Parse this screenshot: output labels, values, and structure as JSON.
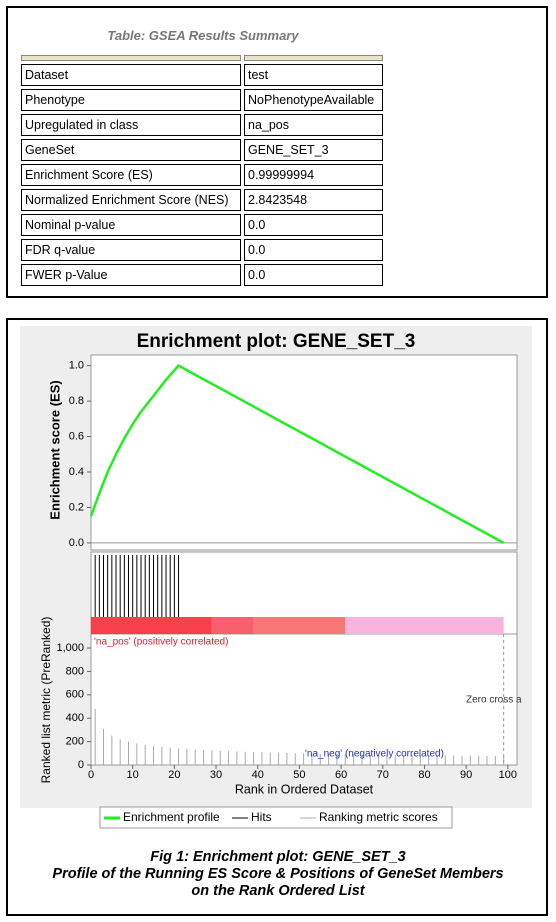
{
  "table": {
    "title": "Table: GSEA Results Summary",
    "rows": [
      [
        "Dataset",
        "test"
      ],
      [
        "Phenotype",
        "NoPhenotypeAvailable"
      ],
      [
        "Upregulated in class",
        "na_pos"
      ],
      [
        "GeneSet",
        "GENE_SET_3"
      ],
      [
        "Enrichment Score (ES)",
        "0.99999994"
      ],
      [
        "Normalized Enrichment Score (NES)",
        "2.8423548"
      ],
      [
        "Nominal p-value",
        "0.0"
      ],
      [
        "FDR q-value",
        "0.0"
      ],
      [
        "FWER p-Value",
        "0.0"
      ]
    ]
  },
  "chart_data": {
    "type": "enrichment",
    "title": "Enrichment plot: GENE_SET_3",
    "ylabel": "Enrichment score (ES)",
    "y2label": "Ranked list metric (PreRanked)",
    "xlabel": "Rank in Ordered Dataset",
    "xlim": [
      0,
      102.2
    ],
    "xticks": [
      0,
      10,
      20,
      30,
      40,
      50,
      60,
      70,
      80,
      90,
      100
    ],
    "ylim": [
      -0.04,
      1.06
    ],
    "yticks": [
      {
        "value": 0,
        "label": "0.0"
      },
      {
        "value": 0.2,
        "label": "0.2"
      },
      {
        "value": 0.4,
        "label": "0.4"
      },
      {
        "value": 0.6,
        "label": "0.6"
      },
      {
        "value": 0.8,
        "label": "0.8"
      },
      {
        "value": 1,
        "label": "1.0"
      }
    ],
    "y2lim": [
      0,
      1120
    ],
    "y2ticks": [
      0,
      200,
      400,
      600,
      800,
      {
        "value": 1000,
        "label": "1,000"
      }
    ],
    "series": [
      {
        "name": "Enrichment profile",
        "color": "#22ee22",
        "x": [
          0,
          2,
          4,
          6,
          8,
          10,
          12,
          14,
          16,
          18,
          21,
          99
        ],
        "values": [
          0.15,
          0.28,
          0.4,
          0.5,
          0.59,
          0.67,
          0.74,
          0.8,
          0.86,
          0.92,
          1.0,
          0.0
        ]
      },
      {
        "name": "Hits",
        "color": "#000000",
        "x": [
          1,
          2,
          3,
          4,
          5,
          6,
          7,
          8,
          9,
          10,
          11,
          12,
          13,
          14,
          15,
          16,
          17,
          18,
          19,
          20,
          21
        ]
      },
      {
        "name": "Ranking metric scores",
        "color": "#aaaaaa",
        "axis": "y2",
        "x": [
          1,
          3,
          5,
          7,
          9,
          11,
          13,
          15,
          17,
          19,
          21,
          23,
          25,
          27,
          29,
          31,
          33,
          35,
          37,
          39,
          41,
          43,
          45,
          47,
          49,
          51,
          53,
          55,
          57,
          59,
          61,
          63,
          65,
          67,
          69,
          71,
          73,
          75,
          77,
          79,
          81,
          83,
          85,
          87,
          89,
          91,
          93,
          95,
          97,
          99
        ],
        "values": [
          480,
          309,
          252,
          220,
          199,
          184,
          172,
          162,
          155,
          148,
          142,
          137,
          132,
          128,
          125,
          122,
          119,
          116,
          113,
          111,
          109,
          107,
          105,
          103,
          101,
          100,
          98,
          97,
          95,
          94,
          93,
          92,
          90,
          89,
          88,
          87,
          86,
          85,
          84,
          84,
          83,
          82,
          81,
          80,
          80,
          79,
          78,
          78,
          77,
          76
        ]
      }
    ],
    "rank_bands": [
      {
        "from": 0,
        "to": 29,
        "color": "#f8404c"
      },
      {
        "from": 29,
        "to": 39,
        "color": "#f86070"
      },
      {
        "from": 39,
        "to": 61,
        "color": "#f87878"
      },
      {
        "from": 61,
        "to": 99,
        "color": "#f8b4dc"
      }
    ],
    "zero_cross": 99,
    "annotations": [
      {
        "text": "'na_pos' (positively correlated)",
        "color": "#e02030"
      },
      {
        "text": "'na_neg' (negatively correlated)",
        "color": "#2030d0"
      },
      {
        "text": "Zero cross a",
        "color": "#333333"
      }
    ]
  },
  "caption": [
    "Fig 1: Enrichment plot: GENE_SET_3",
    "Profile of the Running ES Score & Positions of GeneSet Members",
    "on the Rank Ordered List"
  ]
}
